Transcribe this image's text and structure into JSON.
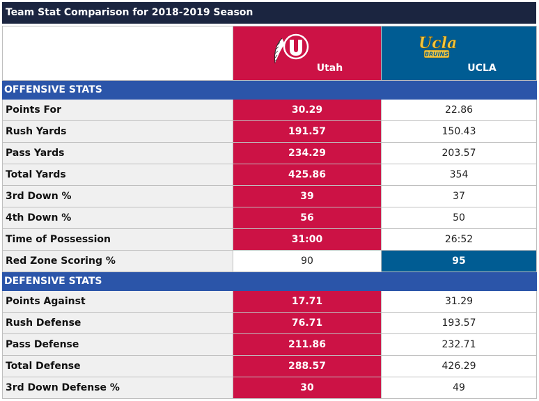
{
  "title": "Team Stat Comparison for 2018-2019 Season",
  "teams": [
    {
      "name": "Utah",
      "color": "#cc1245"
    },
    {
      "name": "UCLA",
      "color": "#005c93",
      "logo_text": "Ucla",
      "logo_subtext": "BRUINS"
    }
  ],
  "sections": [
    {
      "heading": "OFFENSIVE STATS",
      "rows": [
        {
          "stat": "Points For",
          "utah": "30.29",
          "ucla": "22.86",
          "winner": "utah"
        },
        {
          "stat": "Rush Yards",
          "utah": "191.57",
          "ucla": "150.43",
          "winner": "utah"
        },
        {
          "stat": "Pass Yards",
          "utah": "234.29",
          "ucla": "203.57",
          "winner": "utah"
        },
        {
          "stat": "Total Yards",
          "utah": "425.86",
          "ucla": "354",
          "winner": "utah"
        },
        {
          "stat": "3rd Down %",
          "utah": "39",
          "ucla": "37",
          "winner": "utah"
        },
        {
          "stat": "4th Down %",
          "utah": "56",
          "ucla": "50",
          "winner": "utah"
        },
        {
          "stat": "Time of Possession",
          "utah": "31:00",
          "ucla": "26:52",
          "winner": "utah"
        },
        {
          "stat": "Red Zone Scoring %",
          "utah": "90",
          "ucla": "95",
          "winner": "ucla"
        }
      ]
    },
    {
      "heading": "DEFENSIVE STATS",
      "rows": [
        {
          "stat": "Points Against",
          "utah": "17.71",
          "ucla": "31.29",
          "winner": "utah"
        },
        {
          "stat": "Rush Defense",
          "utah": "76.71",
          "ucla": "193.57",
          "winner": "utah"
        },
        {
          "stat": "Pass Defense",
          "utah": "211.86",
          "ucla": "232.71",
          "winner": "utah"
        },
        {
          "stat": "Total Defense",
          "utah": "288.57",
          "ucla": "426.29",
          "winner": "utah"
        },
        {
          "stat": "3rd Down Defense %",
          "utah": "30",
          "ucla": "49",
          "winner": "utah"
        }
      ]
    }
  ]
}
